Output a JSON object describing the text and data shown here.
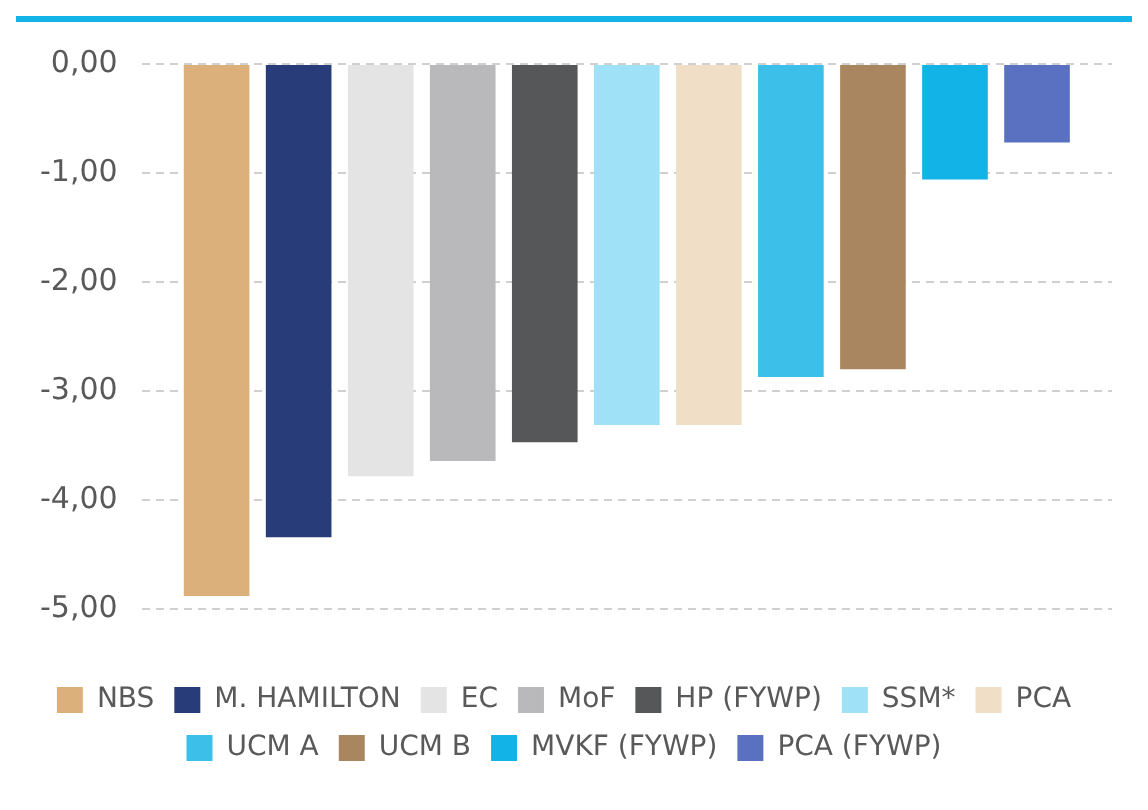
{
  "chart_data": {
    "type": "bar",
    "categories": [
      null
    ],
    "series": [
      {
        "name": "NBS",
        "color": "#dbb07a",
        "values": [
          -4.88
        ]
      },
      {
        "name": "M. HAMILTON",
        "color": "#273c78",
        "values": [
          -4.34
        ]
      },
      {
        "name": "EC",
        "color": "#e4e4e4",
        "values": [
          -3.78
        ]
      },
      {
        "name": "MoF",
        "color": "#b9b9bb",
        "values": [
          -3.64
        ]
      },
      {
        "name": "HP (FYWP)",
        "color": "#555759",
        "values": [
          -3.47
        ]
      },
      {
        "name": "SSM*",
        "color": "#9fe1f7",
        "values": [
          -3.31
        ]
      },
      {
        "name": "PCA",
        "color": "#f0dfc6",
        "values": [
          -3.31
        ]
      },
      {
        "name": "UCM A",
        "color": "#3cc0ea",
        "values": [
          -2.87
        ]
      },
      {
        "name": "UCM B",
        "color": "#a98560",
        "values": [
          -2.8
        ]
      },
      {
        "name": "MVKF (FYWP)",
        "color": "#12b4e8",
        "values": [
          -1.06
        ]
      },
      {
        "name": "PCA (FYWP)",
        "color": "#5a70c0",
        "values": [
          -0.72
        ]
      }
    ],
    "ylim": [
      -5,
      0
    ],
    "yticks": [
      {
        "value": -5,
        "label": "-5,00"
      },
      {
        "value": -4,
        "label": "-4,00"
      },
      {
        "value": -3,
        "label": "-3,00"
      },
      {
        "value": -2,
        "label": "-2,00"
      },
      {
        "value": -1,
        "label": "-1,00"
      },
      {
        "value": 0,
        "label": "0,00"
      }
    ],
    "grid": "y",
    "legend": "bottom"
  }
}
